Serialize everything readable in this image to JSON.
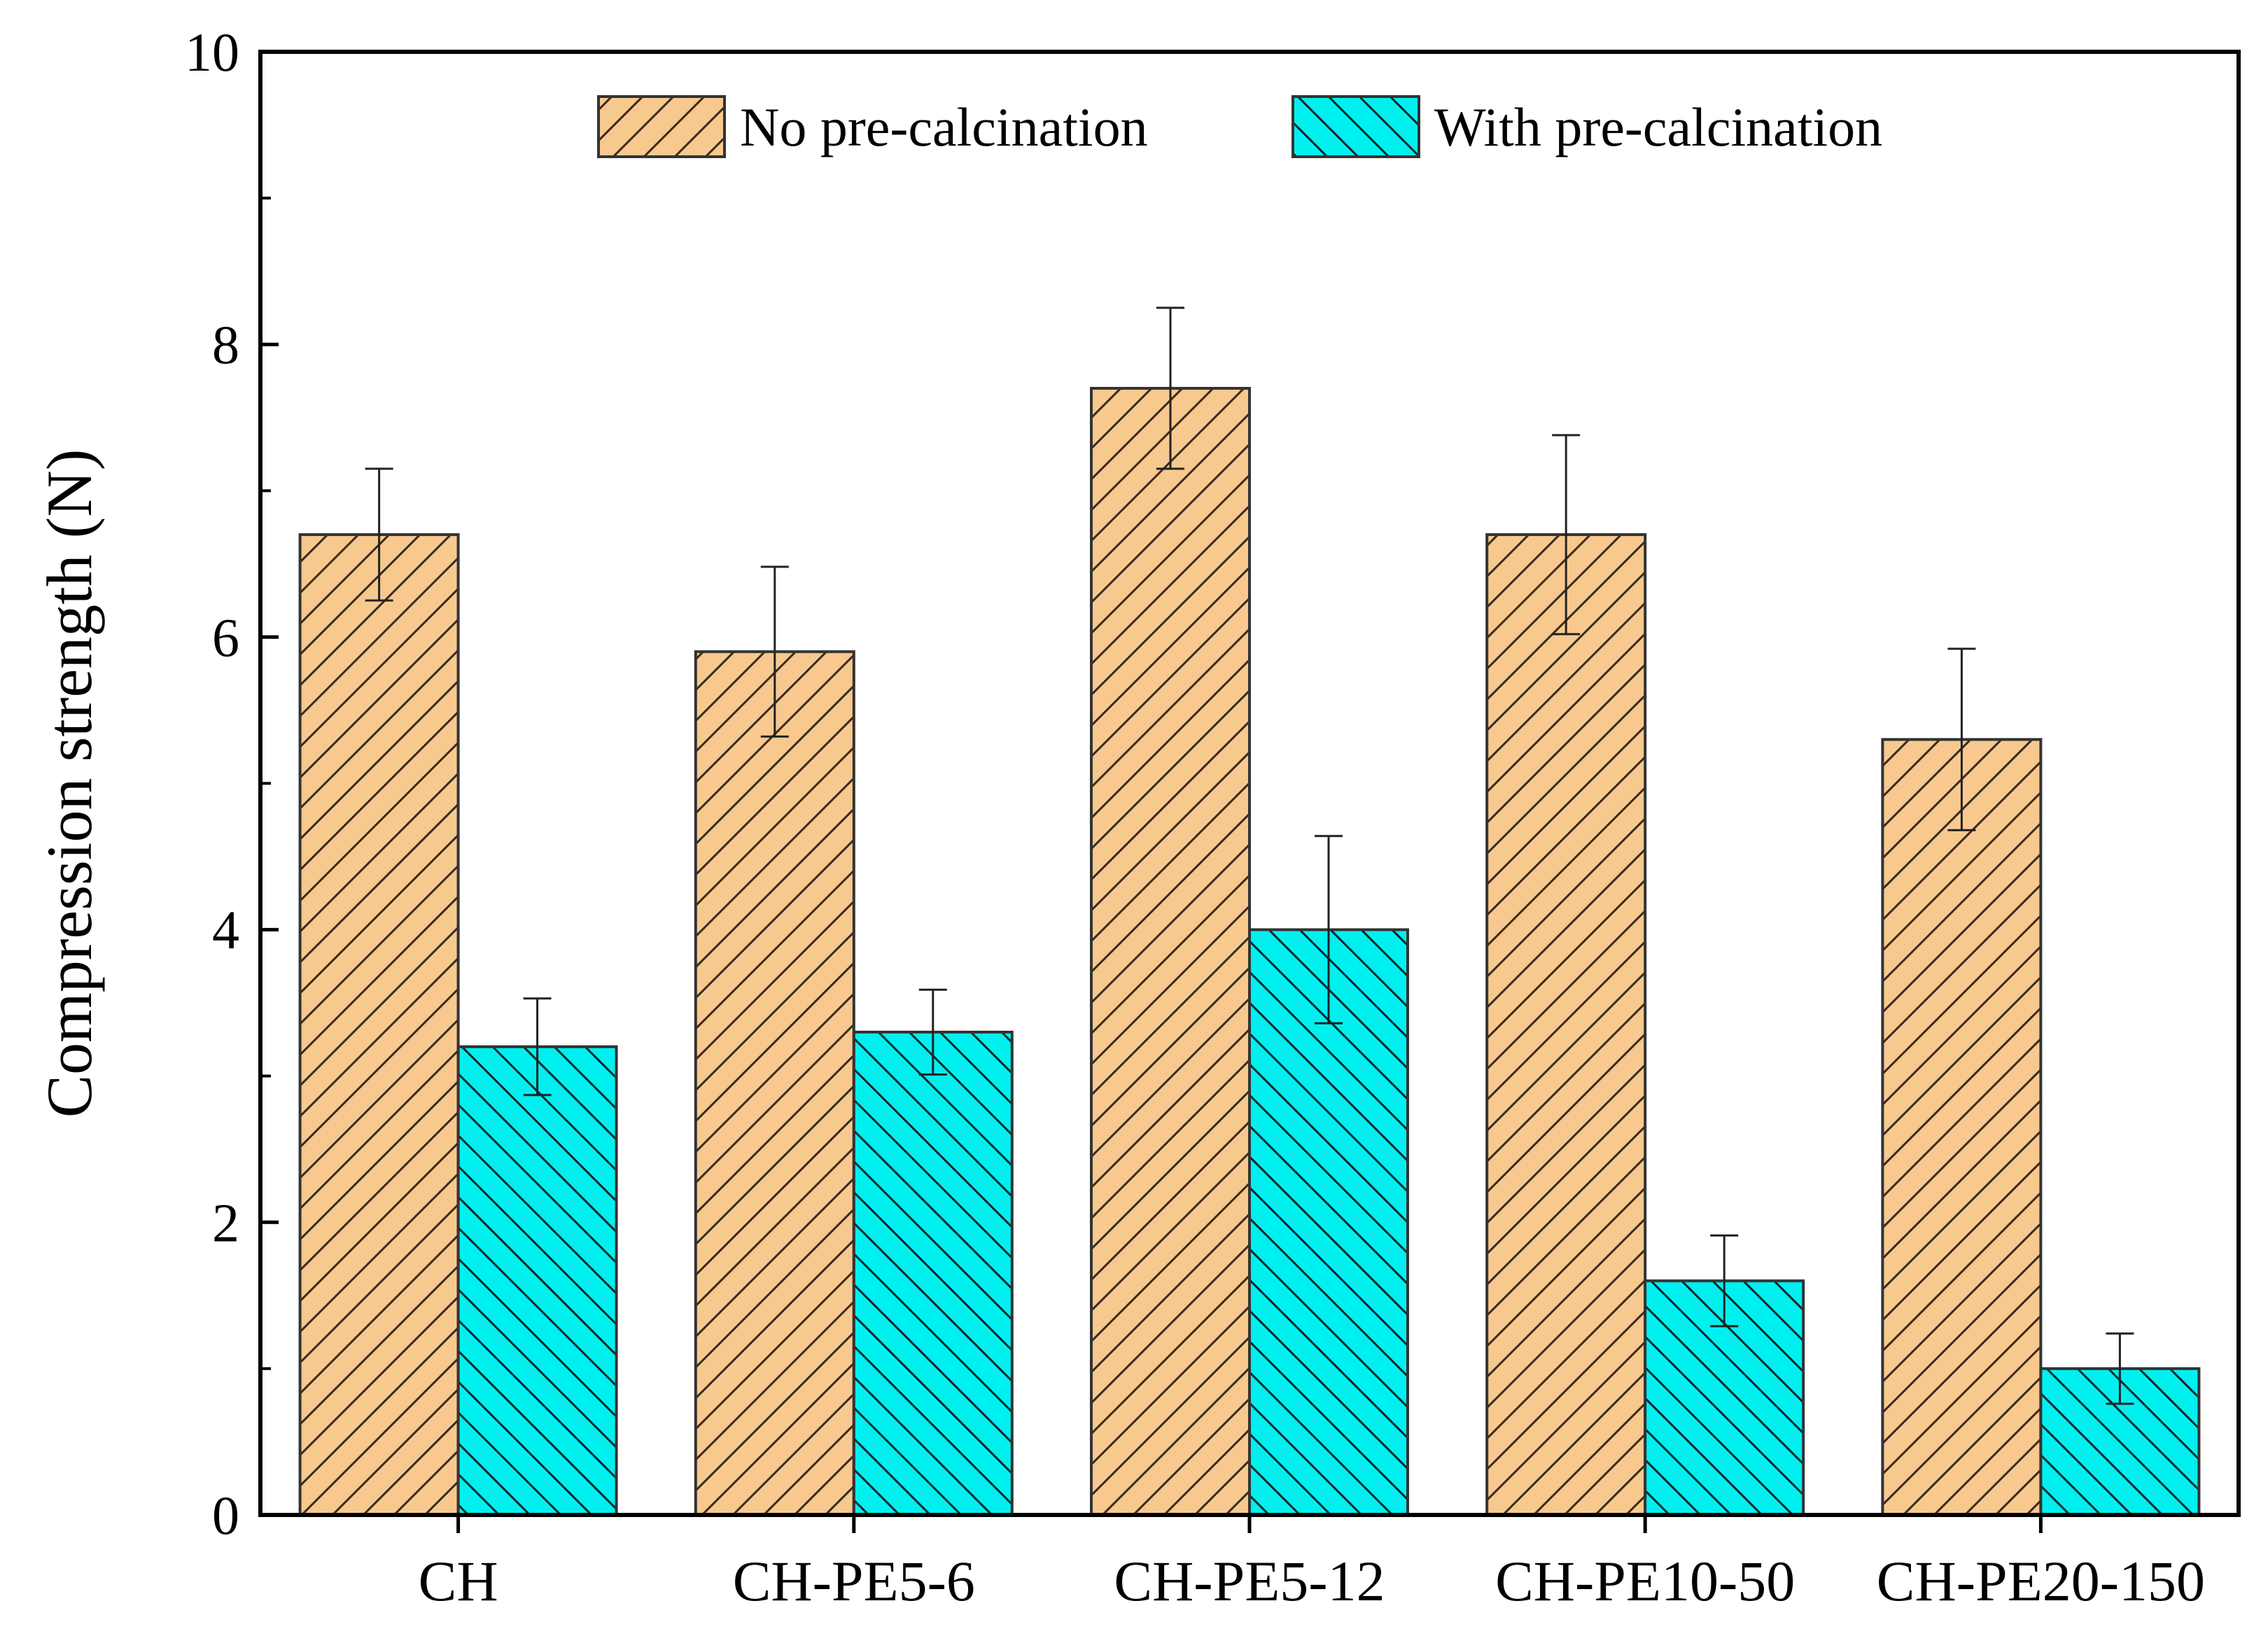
{
  "chart_data": {
    "type": "bar",
    "categories": [
      "CH",
      "CH-PE5-6",
      "CH-PE5-12",
      "CH-PE10-50",
      "CH-PE20-150"
    ],
    "series": [
      {
        "name": "No pre-calcination",
        "values": [
          6.7,
          5.9,
          7.7,
          6.7,
          5.3
        ],
        "errors": [
          0.45,
          0.58,
          0.55,
          0.68,
          0.62
        ],
        "color": "#F7C98F",
        "hatch": "forward"
      },
      {
        "name": "With pre-calcination",
        "values": [
          3.2,
          3.3,
          4.0,
          1.6,
          1.0
        ],
        "errors": [
          0.33,
          0.29,
          0.64,
          0.31,
          0.24
        ],
        "color": "#00F0F0",
        "hatch": "backward"
      }
    ],
    "xlabel": "",
    "ylabel": "Compression strength (N)",
    "ylim": [
      0,
      10
    ],
    "yticks": [
      0,
      2,
      4,
      6,
      8,
      10
    ],
    "ytick_labels": [
      "0",
      "2",
      "4",
      "6",
      "8",
      "10"
    ],
    "legend_position": "top-center",
    "grid": false
  }
}
